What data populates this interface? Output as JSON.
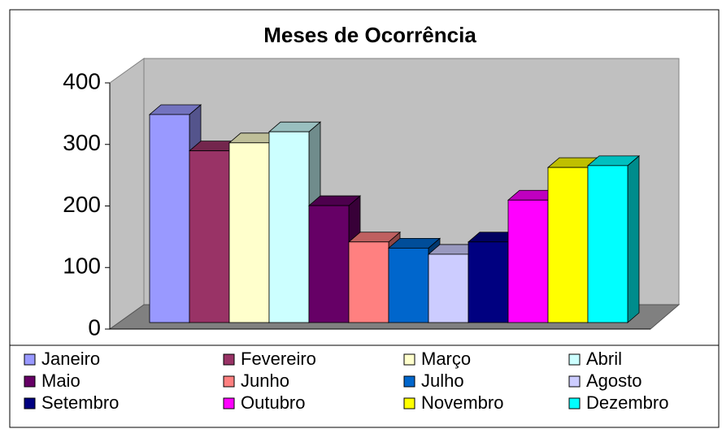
{
  "chart_data": {
    "type": "bar3d",
    "title": "Meses de Ocorrência",
    "categories": [
      "Janeiro",
      "Fevereiro",
      "Março",
      "Abril",
      "Maio",
      "Junho",
      "Julho",
      "Agosto",
      "Setembro",
      "Outubro",
      "Novembro",
      "Dezembro"
    ],
    "values": [
      338,
      279,
      292,
      310,
      190,
      131,
      121,
      111,
      131,
      199,
      252,
      255
    ],
    "colors": [
      "#9999ff",
      "#993366",
      "#ffffcc",
      "#ccffff",
      "#660066",
      "#ff8080",
      "#0066cc",
      "#ccccff",
      "#000080",
      "#ff00ff",
      "#ffff00",
      "#00ffff"
    ],
    "ylim": [
      0,
      400
    ],
    "yticks": [
      0,
      100,
      200,
      300,
      400
    ],
    "grid": false,
    "legend": "bottom"
  }
}
